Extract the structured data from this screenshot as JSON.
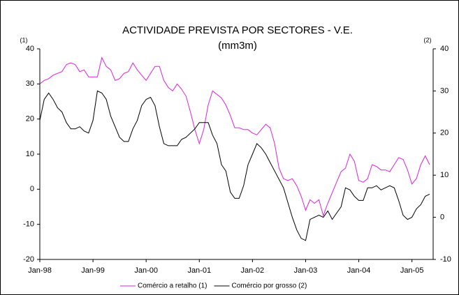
{
  "chart_data": {
    "type": "line",
    "title": "ACTIVIDADE PREVISTA POR SECTORES - V.E.",
    "subtitle": "(mm3m)",
    "ylabel": "(1)",
    "y2label": "(2)",
    "categories": [
      "Jan-98",
      null,
      null,
      null,
      null,
      null,
      null,
      null,
      null,
      null,
      null,
      null,
      "Jan-99",
      null,
      null,
      null,
      null,
      null,
      null,
      null,
      null,
      null,
      null,
      null,
      "Jan-00",
      null,
      null,
      null,
      null,
      null,
      null,
      null,
      null,
      null,
      null,
      null,
      "Jan-01",
      null,
      null,
      null,
      null,
      null,
      null,
      null,
      null,
      null,
      null,
      null,
      "Jan-02",
      null,
      null,
      null,
      null,
      null,
      null,
      null,
      null,
      null,
      null,
      null,
      "Jan-03",
      null,
      null,
      null,
      null,
      null,
      null,
      null,
      null,
      null,
      null,
      null,
      "Jan-04",
      null,
      null,
      null,
      null,
      null,
      null,
      null,
      null,
      null,
      null,
      null,
      "Jan-05",
      null,
      null,
      null,
      null
    ],
    "ylim": [
      -20,
      40
    ],
    "yticks": [
      -20,
      -10,
      0,
      10,
      20,
      30,
      40
    ],
    "y2lim": [
      -10,
      40
    ],
    "y2ticks": [
      -10,
      0,
      10,
      20,
      30,
      40
    ],
    "legend": "bottom",
    "series": [
      {
        "name": "Comércio a retalho (1)",
        "color": "#e020e0",
        "values": [
          30,
          31,
          31.5,
          32.5,
          33,
          33.5,
          35.5,
          36,
          35.5,
          33.5,
          34,
          32,
          32,
          32,
          37.5,
          35,
          34,
          31,
          31.5,
          33,
          33.5,
          36,
          34,
          32.5,
          31,
          33,
          35,
          35,
          31,
          29,
          28,
          30,
          28.5,
          26.5,
          22,
          17,
          13,
          17,
          24,
          28,
          27,
          26,
          24,
          21,
          17.5,
          17.5,
          17,
          17,
          16,
          15.5,
          17,
          18.5,
          17.5,
          13,
          6,
          3,
          2.5,
          3,
          1,
          -2,
          -6,
          -3,
          -4,
          -3,
          -7.5,
          -4,
          -1,
          2,
          5,
          6,
          10,
          8,
          2.5,
          2,
          3,
          7,
          6.5,
          5.5,
          5.5,
          5,
          7,
          9,
          8.5,
          5.5,
          1.5,
          3,
          7,
          9.5,
          7
        ]
      },
      {
        "name": "Comércio por grosso (2)",
        "color": "#000000",
        "axis": "y2",
        "values": [
          23,
          28,
          29.5,
          28,
          26,
          25,
          22.5,
          21,
          21,
          21.5,
          20.5,
          20,
          23,
          30,
          29.5,
          28,
          24,
          21.5,
          19,
          18,
          18,
          21,
          23,
          26.5,
          28,
          28.5,
          26.5,
          21.5,
          17.5,
          17,
          17,
          17,
          18.5,
          19,
          20,
          21,
          22.5,
          22.5,
          22.5,
          19.5,
          17.5,
          12.5,
          11,
          6,
          4.5,
          4.5,
          7.5,
          12.5,
          15,
          17.5,
          16.5,
          15,
          13,
          11,
          9,
          7,
          3.5,
          0,
          -3,
          -5,
          -5.5,
          -0.5,
          0,
          0.5,
          0,
          1.5,
          -0.5,
          1,
          2.5,
          7,
          6.5,
          5,
          4,
          4,
          7,
          7,
          7.5,
          6.5,
          7,
          7.5,
          7,
          4,
          0.5,
          -0.5,
          0,
          2,
          3,
          5,
          5.5
        ]
      }
    ]
  }
}
